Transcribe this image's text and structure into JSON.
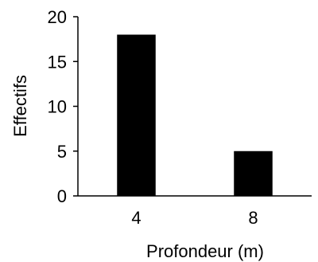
{
  "chart_data": {
    "type": "bar",
    "categories": [
      "4",
      "8"
    ],
    "values": [
      18,
      5
    ],
    "title": "",
    "xlabel": "Profondeur (m)",
    "ylabel": "Effectifs",
    "ylim": [
      0,
      20
    ],
    "yticks": [
      0,
      5,
      10,
      15,
      20
    ],
    "grid": false,
    "legend": "none",
    "bar_color": "#000000",
    "axis_color": "#000000"
  }
}
